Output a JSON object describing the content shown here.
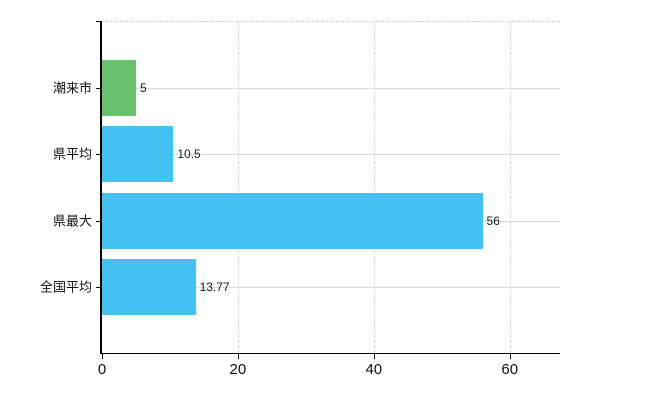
{
  "chart_data": {
    "type": "bar",
    "orientation": "horizontal",
    "title": "",
    "xlabel": "",
    "ylabel": "",
    "categories": [
      "潮来市",
      "県平均",
      "県最大",
      "全国平均"
    ],
    "values": [
      5,
      10.5,
      56,
      13.77
    ],
    "value_labels": [
      "5",
      "10.5",
      "56",
      "13.77"
    ],
    "bar_colors": [
      "#69c36e",
      "#45c1f1",
      "#45c1f1",
      "#45c1f1"
    ],
    "xlim": [
      0,
      67.4
    ],
    "x_ticks": [
      0,
      20,
      40,
      60
    ],
    "x_tick_labels": [
      "0",
      "20",
      "40",
      "60"
    ],
    "grid": true,
    "legend": false,
    "styles": {
      "axis_color": "#000000",
      "horizontal_grid_color": "#d8ded8",
      "vertical_grid_color": "#d2d2d6",
      "top_border_color": "#cfcfcf",
      "background_color": "#ffffff",
      "text_color": "#111111"
    }
  }
}
